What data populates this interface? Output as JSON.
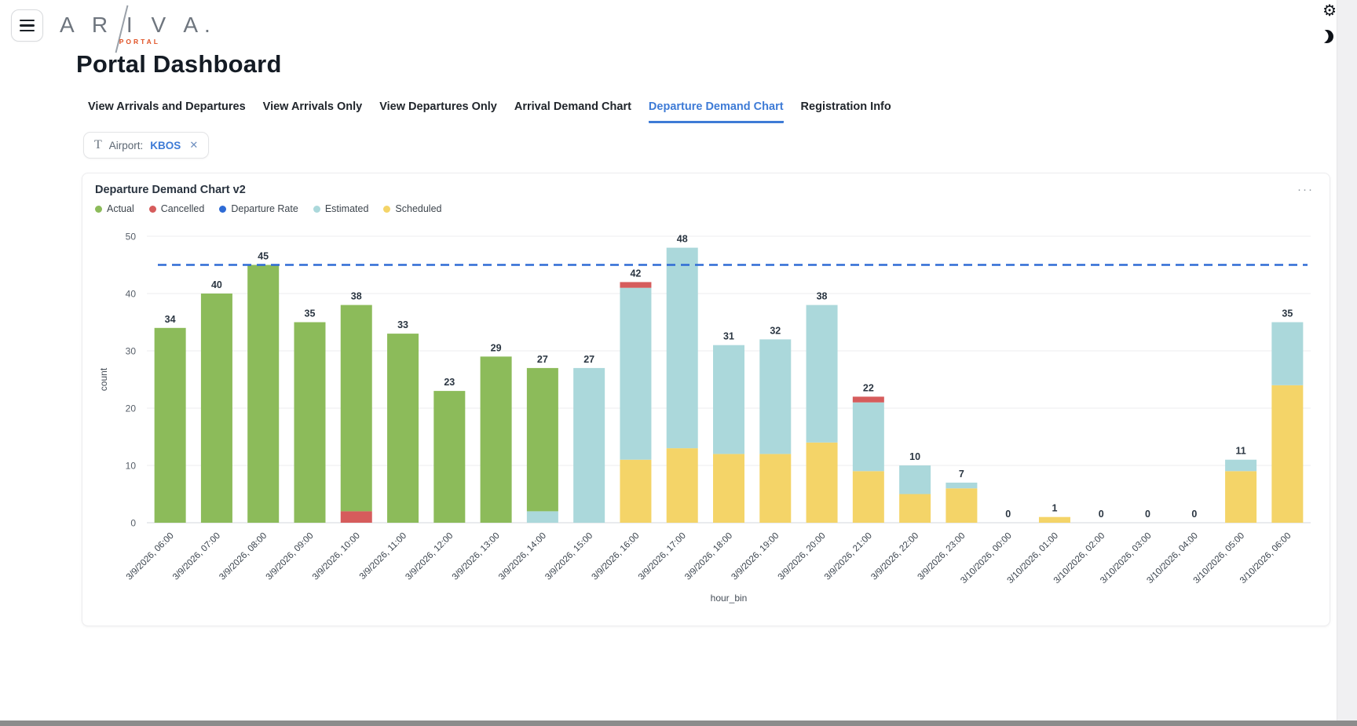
{
  "brand": {
    "name": "A R I V A.",
    "sub": "PORTAL"
  },
  "page_title": "Portal Dashboard",
  "icons": {
    "gear_glyph": "⚙",
    "more_glyph": "···",
    "close_glyph": "✕",
    "filter_type_glyph": "T"
  },
  "tabs": [
    {
      "label": "View Arrivals and Departures",
      "active": false
    },
    {
      "label": "View Arrivals Only",
      "active": false
    },
    {
      "label": "View Departures Only",
      "active": false
    },
    {
      "label": "Arrival Demand Chart",
      "active": false
    },
    {
      "label": "Departure Demand Chart",
      "active": true
    },
    {
      "label": "Registration Info",
      "active": false
    }
  ],
  "filter": {
    "label": "Airport:",
    "value": "KBOS"
  },
  "card": {
    "title": "Departure Demand Chart v2"
  },
  "legend": [
    {
      "label": "Actual",
      "color": "#8CBB5A"
    },
    {
      "label": "Cancelled",
      "color": "#D65C5C"
    },
    {
      "label": "Departure Rate",
      "color": "#2E6BD5"
    },
    {
      "label": "Estimated",
      "color": "#ABD8DB"
    },
    {
      "label": "Scheduled",
      "color": "#F4D468"
    }
  ],
  "chart_data": {
    "type": "bar",
    "stacked": true,
    "title": "Departure Demand Chart v2",
    "xlabel": "hour_bin",
    "ylabel": "count",
    "ylim": [
      0,
      50
    ],
    "yticks": [
      0,
      10,
      20,
      30,
      40,
      50
    ],
    "grid": "horizontal",
    "legend_position": "top-left",
    "categories": [
      "3/9/2026, 06:00",
      "3/9/2026, 07:00",
      "3/9/2026, 08:00",
      "3/9/2026, 09:00",
      "3/9/2026, 10:00",
      "3/9/2026, 11:00",
      "3/9/2026, 12:00",
      "3/9/2026, 13:00",
      "3/9/2026, 14:00",
      "3/9/2026, 15:00",
      "3/9/2026, 16:00",
      "3/9/2026, 17:00",
      "3/9/2026, 18:00",
      "3/9/2026, 19:00",
      "3/9/2026, 20:00",
      "3/9/2026, 21:00",
      "3/9/2026, 22:00",
      "3/9/2026, 23:00",
      "3/10/2026, 00:00",
      "3/10/2026, 01:00",
      "3/10/2026, 02:00",
      "3/10/2026, 03:00",
      "3/10/2026, 04:00",
      "3/10/2026, 05:00",
      "3/10/2026, 06:00"
    ],
    "series": [
      {
        "name": "Scheduled",
        "color": "#F4D468",
        "values": [
          0,
          0,
          0,
          0,
          0,
          0,
          0,
          0,
          0,
          0,
          11,
          13,
          12,
          12,
          14,
          9,
          5,
          6,
          0,
          1,
          0,
          0,
          0,
          9,
          24
        ]
      },
      {
        "name": "Estimated",
        "color": "#ABD8DB",
        "values": [
          0,
          0,
          0,
          0,
          0,
          0,
          0,
          0,
          2,
          27,
          30,
          35,
          19,
          20,
          24,
          12,
          5,
          1,
          0,
          0,
          0,
          0,
          0,
          2,
          11
        ]
      },
      {
        "name": "Cancelled",
        "color": "#D65C5C",
        "values": [
          0,
          0,
          0,
          0,
          2,
          0,
          0,
          0,
          0,
          0,
          1,
          0,
          0,
          0,
          0,
          1,
          0,
          0,
          0,
          0,
          0,
          0,
          0,
          0,
          0
        ]
      },
      {
        "name": "Actual",
        "color": "#8CBB5A",
        "values": [
          34,
          40,
          45,
          35,
          36,
          33,
          23,
          29,
          25,
          0,
          0,
          0,
          0,
          0,
          0,
          0,
          0,
          0,
          0,
          0,
          0,
          0,
          0,
          0,
          0
        ]
      }
    ],
    "totals": [
      34,
      40,
      45,
      35,
      38,
      33,
      23,
      29,
      27,
      27,
      42,
      48,
      31,
      32,
      38,
      22,
      10,
      7,
      0,
      1,
      0,
      0,
      0,
      11,
      35
    ],
    "reference_line": {
      "name": "Departure Rate",
      "value": 45,
      "color": "#2E6BD5",
      "style": "dashed"
    }
  }
}
